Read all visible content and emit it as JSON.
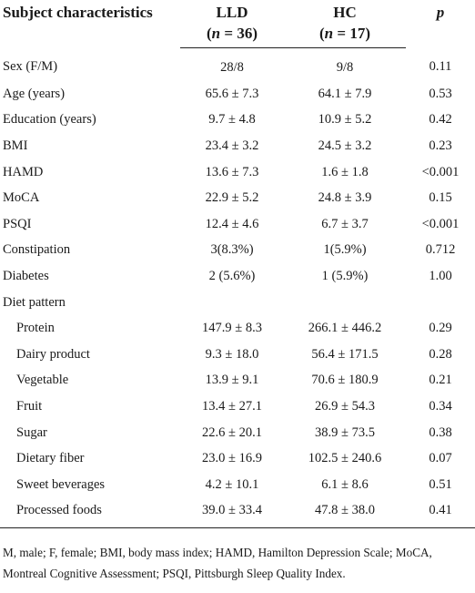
{
  "header": {
    "col1": "Subject characteristics",
    "col2_line1": "LLD",
    "col2_line2_pre": "(",
    "col2_line2_var": "n",
    "col2_line2_post": " = 36)",
    "col3_line1": "HC",
    "col3_line2_pre": "(",
    "col3_line2_var": "n",
    "col3_line2_post": " = 17)",
    "col4": "p"
  },
  "rows": [
    {
      "label": "Sex (F/M)",
      "lld": "28/8",
      "hc": "9/8",
      "p": "0.11"
    },
    {
      "label": "Age (years)",
      "lld": "65.6 ± 7.3",
      "hc": "64.1 ± 7.9",
      "p": "0.53"
    },
    {
      "label": "Education (years)",
      "lld": "9.7 ± 4.8",
      "hc": "10.9 ± 5.2",
      "p": "0.42"
    },
    {
      "label": "BMI",
      "lld": "23.4 ± 3.2",
      "hc": "24.5 ± 3.2",
      "p": "0.23"
    },
    {
      "label": "HAMD",
      "lld": "13.6 ± 7.3",
      "hc": "1.6 ± 1.8",
      "p": "<0.001"
    },
    {
      "label": "MoCA",
      "lld": "22.9 ± 5.2",
      "hc": "24.8 ± 3.9",
      "p": "0.15"
    },
    {
      "label": "PSQI",
      "lld": "12.4 ± 4.6",
      "hc": "6.7 ± 3.7",
      "p": "<0.001"
    },
    {
      "label": "Constipation",
      "lld": "3(8.3%)",
      "hc": "1(5.9%)",
      "p": "0.712"
    },
    {
      "label": "Diabetes",
      "lld": "2 (5.6%)",
      "hc": "1 (5.9%)",
      "p": "1.00"
    },
    {
      "label": "Diet pattern",
      "lld": "",
      "hc": "",
      "p": ""
    },
    {
      "label": "Protein",
      "lld": "147.9 ± 8.3",
      "hc": "266.1 ± 446.2",
      "p": "0.29"
    },
    {
      "label": "Dairy product",
      "lld": "9.3 ± 18.0",
      "hc": "56.4 ± 171.5",
      "p": "0.28"
    },
    {
      "label": "Vegetable",
      "lld": "13.9 ± 9.1",
      "hc": "70.6 ± 180.9",
      "p": "0.21"
    },
    {
      "label": "Fruit",
      "lld": "13.4 ± 27.1",
      "hc": "26.9 ± 54.3",
      "p": "0.34"
    },
    {
      "label": "Sugar",
      "lld": "22.6 ± 20.1",
      "hc": "38.9 ± 73.5",
      "p": "0.38"
    },
    {
      "label": "Dietary fiber",
      "lld": "23.0 ± 16.9",
      "hc": "102.5 ± 240.6",
      "p": "0.07"
    },
    {
      "label": "Sweet beverages",
      "lld": "4.2 ± 10.1",
      "hc": "6.1 ± 8.6",
      "p": "0.51"
    },
    {
      "label": "Processed foods",
      "lld": "39.0 ± 33.4",
      "hc": "47.8 ± 38.0",
      "p": "0.41"
    }
  ],
  "footnote": "M, male; F, female; BMI, body mass index; HAMD, Hamilton Depression Scale; MoCA, Montreal Cognitive Assessment; PSQI, Pittsburgh Sleep Quality Index."
}
